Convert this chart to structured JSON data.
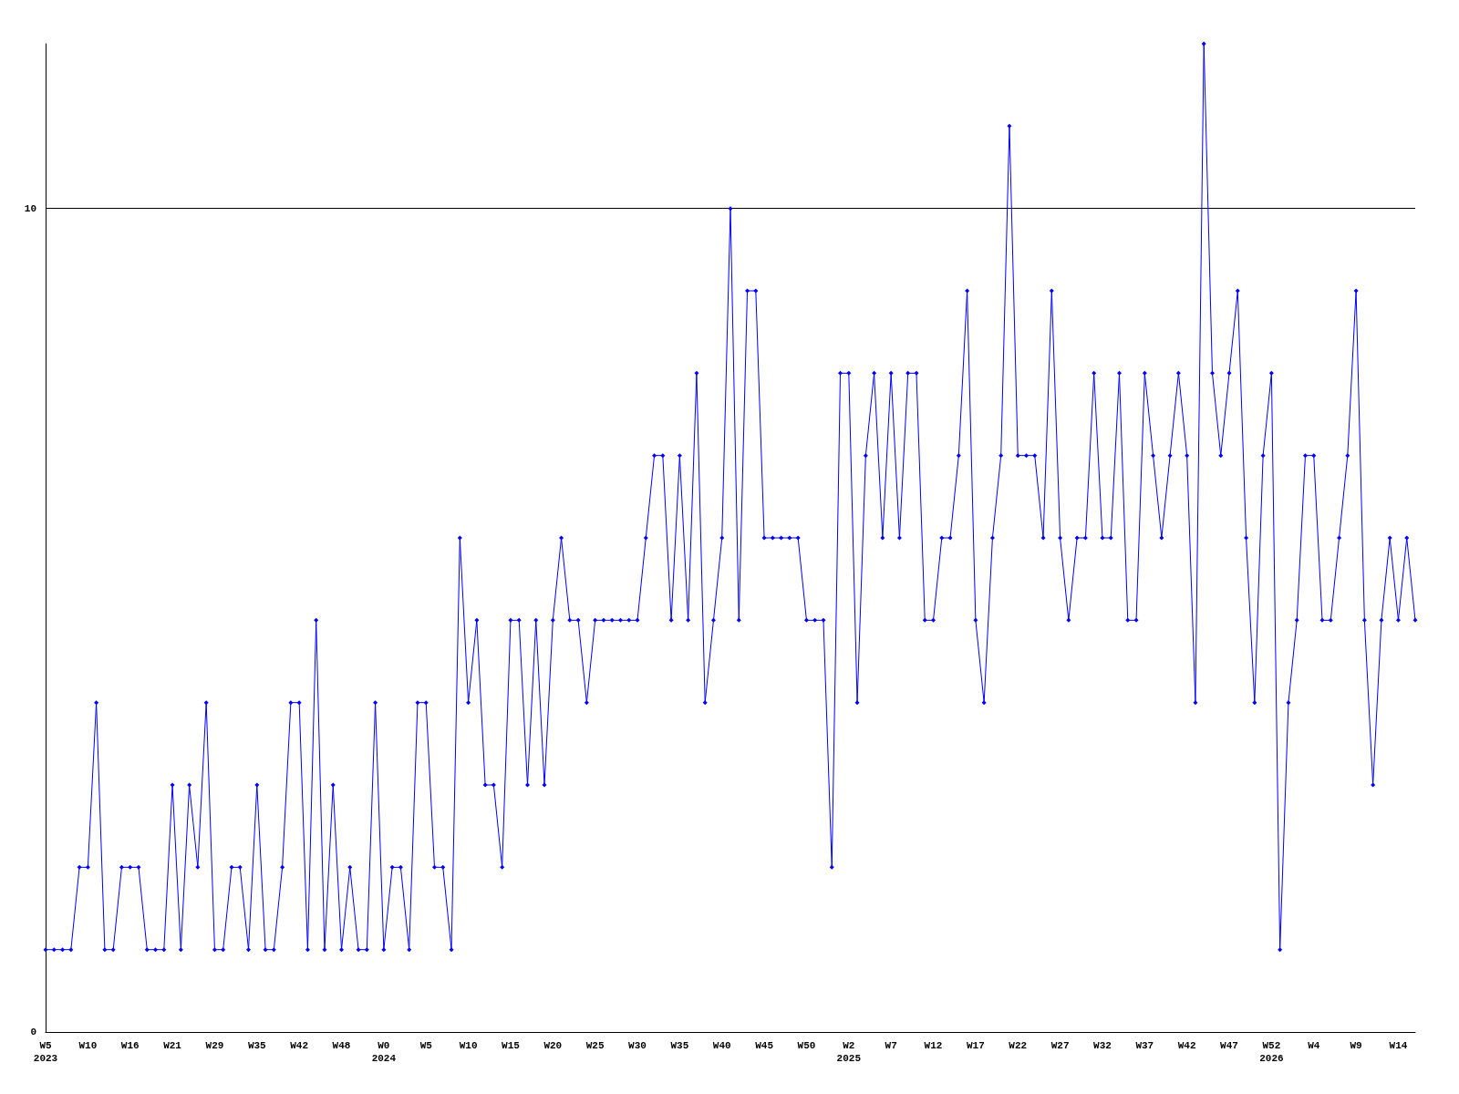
{
  "chart_data": {
    "type": "line",
    "categories": [
      "W5\n2023",
      null,
      null,
      null,
      null,
      "W10",
      null,
      null,
      null,
      null,
      "W16",
      null,
      null,
      null,
      null,
      "W21",
      null,
      null,
      null,
      null,
      "W29",
      null,
      null,
      null,
      null,
      "W35",
      null,
      null,
      null,
      null,
      "W42",
      null,
      null,
      null,
      null,
      "W48",
      null,
      null,
      null,
      null,
      "W0\n2024",
      null,
      null,
      null,
      null,
      "W5",
      null,
      null,
      null,
      null,
      "W10",
      null,
      null,
      null,
      null,
      "W15",
      null,
      null,
      null,
      null,
      "W20",
      null,
      null,
      null,
      null,
      "W25",
      null,
      null,
      null,
      null,
      "W30",
      null,
      null,
      null,
      null,
      "W35",
      null,
      null,
      null,
      null,
      "W40",
      null,
      null,
      null,
      null,
      "W45",
      null,
      null,
      null,
      null,
      "W50",
      null,
      null,
      null,
      null,
      "W2\n2025",
      null,
      null,
      null,
      null,
      "W7",
      null,
      null,
      null,
      null,
      "W12",
      null,
      null,
      null,
      null,
      "W17",
      null,
      null,
      null,
      null,
      "W22",
      null,
      null,
      null,
      null,
      "W27",
      null,
      null,
      null,
      null,
      "W32",
      null,
      null,
      null,
      null,
      "W37",
      null,
      null,
      null,
      null,
      "W42",
      null,
      null,
      null,
      null,
      "W47",
      null,
      null,
      null,
      null,
      "W52\n2026",
      null,
      null,
      null,
      null,
      "W4",
      null,
      null,
      null,
      null,
      "W9",
      null,
      null,
      null,
      null,
      "W14",
      null,
      null
    ],
    "series": [
      {
        "color": "#0000ff",
        "values": [
          1,
          1,
          1,
          1,
          2,
          2,
          4,
          1,
          1,
          2,
          2,
          2,
          1,
          1,
          1,
          3,
          1,
          3,
          2,
          4,
          1,
          1,
          2,
          2,
          1,
          3,
          1,
          1,
          2,
          4,
          4,
          1,
          5,
          1,
          3,
          1,
          2,
          1,
          1,
          4,
          1,
          2,
          2,
          1,
          4,
          4,
          2,
          2,
          1,
          6,
          4,
          5,
          3,
          3,
          2,
          5,
          5,
          3,
          5,
          3,
          5,
          6,
          5,
          5,
          4,
          5,
          5,
          5,
          5,
          5,
          5,
          6,
          7,
          7,
          5,
          7,
          5,
          8,
          4,
          5,
          6,
          10,
          5,
          9,
          9,
          6,
          6,
          6,
          6,
          6,
          5,
          5,
          5,
          2,
          8,
          8,
          4,
          7,
          8,
          6,
          8,
          6,
          8,
          8,
          5,
          5,
          6,
          6,
          7,
          9,
          5,
          4,
          6,
          7,
          11,
          7,
          7,
          7,
          6,
          9,
          6,
          5,
          6,
          6,
          8,
          6,
          6,
          8,
          5,
          5,
          8,
          7,
          6,
          7,
          8,
          7,
          4,
          12,
          8,
          7,
          8,
          9,
          6,
          4,
          7,
          8,
          1,
          4,
          5,
          7,
          7,
          5,
          5,
          6,
          7,
          9,
          5,
          3,
          5,
          6,
          5,
          6,
          5
        ]
      }
    ],
    "ylim": [
      0,
      12
    ],
    "yticks": [
      0,
      10
    ],
    "grid": "y",
    "marker": "diamond",
    "line_style": "solid"
  }
}
